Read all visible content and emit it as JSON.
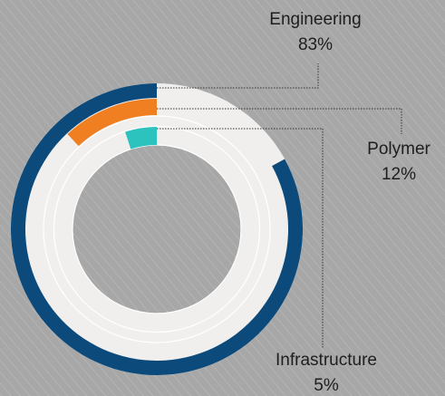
{
  "chart_data": {
    "type": "radialbar",
    "categories": [
      "Engineering",
      "Polymer",
      "Infrastructure"
    ],
    "values": [
      83,
      12,
      5
    ],
    "value_labels": [
      "83%",
      "12%",
      "5%"
    ],
    "colors": [
      "#0b4a7b",
      "#f07f22",
      "#2cc3bf"
    ],
    "track_color": "#f0efed"
  }
}
